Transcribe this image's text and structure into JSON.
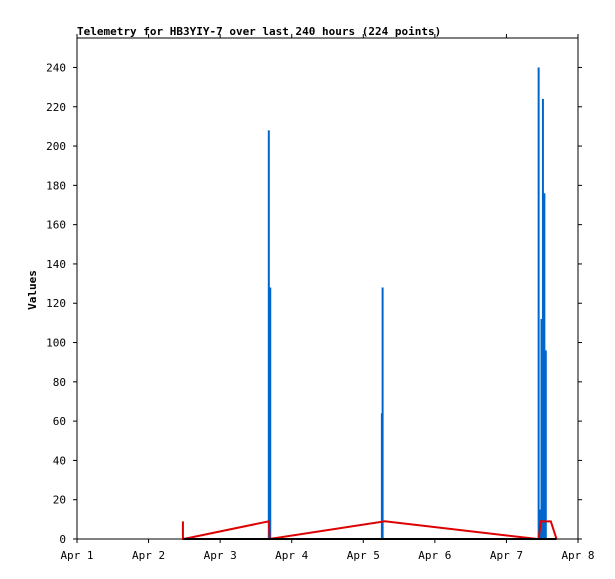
{
  "chart_data": {
    "type": "bar",
    "title": "Telemetry for HB3YIY-7 over last 240 hours (224 points)",
    "xlabel": "",
    "ylabel": "Values",
    "x_ticks": [
      "Apr 1",
      "Apr 2",
      "Apr 3",
      "Apr 4",
      "Apr 5",
      "Apr 6",
      "Apr 7",
      "Apr 8"
    ],
    "y_ticks": [
      0,
      20,
      40,
      60,
      80,
      100,
      120,
      140,
      160,
      180,
      200,
      220,
      240
    ],
    "xlim_days": [
      0,
      7
    ],
    "ylim": [
      0,
      255
    ],
    "grid": false,
    "legend": "none",
    "series": [
      {
        "type": "bar",
        "color": "#0066cc",
        "points": [
          [
            2.68,
            208
          ],
          [
            2.7,
            128
          ],
          [
            4.26,
            64
          ],
          [
            4.27,
            128
          ],
          [
            6.45,
            240
          ],
          [
            6.49,
            112
          ],
          [
            6.51,
            224
          ],
          [
            6.53,
            176
          ],
          [
            6.55,
            96
          ],
          [
            6.47,
            15
          ]
        ]
      },
      {
        "type": "line",
        "color": "#dd0000",
        "points": [
          [
            1.48,
            9
          ],
          [
            1.48,
            0
          ],
          [
            1.49,
            0
          ],
          [
            2.68,
            9
          ],
          [
            2.69,
            0
          ],
          [
            4.3,
            9
          ],
          [
            6.43,
            0
          ],
          [
            6.45,
            0
          ],
          [
            6.48,
            9
          ],
          [
            6.62,
            9
          ],
          [
            6.7,
            0
          ]
        ]
      },
      {
        "type": "line",
        "color": "#000000",
        "points": [
          [
            1.48,
            0
          ],
          [
            6.7,
            0
          ]
        ]
      }
    ]
  }
}
